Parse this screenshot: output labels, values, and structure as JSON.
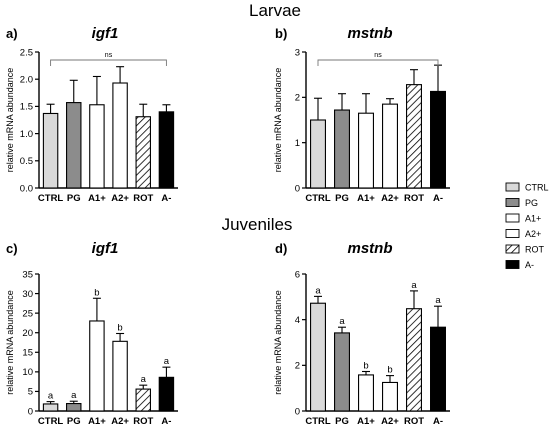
{
  "figure": {
    "sections": [
      "Larvae",
      "Juveniles"
    ],
    "legend": [
      {
        "name": "CTRL",
        "fill": "#d9d9d9",
        "hatch": false
      },
      {
        "name": "PG",
        "fill": "#8c8c8c",
        "hatch": false
      },
      {
        "name": "A1+",
        "fill": "#ffffff",
        "hatch": false
      },
      {
        "name": "A2+",
        "fill": "#ffffff",
        "hatch": false
      },
      {
        "name": "ROT",
        "fill": "#ffffff",
        "hatch": true
      },
      {
        "name": "A-",
        "fill": "#000000",
        "hatch": false
      }
    ]
  },
  "chart_data": [
    {
      "type": "bar",
      "panel": "a)",
      "title": "igf1",
      "ylabel": "relative mRNA abundance",
      "categories": [
        "CTRL",
        "PG",
        "A1+",
        "A2+",
        "ROT",
        "A-"
      ],
      "values": [
        1.37,
        1.57,
        1.53,
        1.93,
        1.31,
        1.4
      ],
      "errors": [
        0.17,
        0.41,
        0.52,
        0.3,
        0.23,
        0.13
      ],
      "ylim": [
        0,
        2.5
      ],
      "yticks": [
        0,
        0.5,
        1.0,
        1.5,
        2.0,
        2.5
      ],
      "yticklabels": [
        "0.0",
        "0.5",
        "1.0",
        "1.5",
        "2.0",
        "2.5"
      ],
      "bracket_label": "ns",
      "letters": [],
      "colors": [
        "#d9d9d9",
        "#8c8c8c",
        "#ffffff",
        "#ffffff",
        "hatch",
        "#000000"
      ]
    },
    {
      "type": "bar",
      "panel": "b)",
      "title": "mstnb",
      "ylabel": "relative mRNA abundance",
      "categories": [
        "CTRL",
        "PG",
        "A1+",
        "A2+",
        "ROT",
        "A-"
      ],
      "values": [
        1.5,
        1.72,
        1.65,
        1.85,
        2.28,
        2.13
      ],
      "errors": [
        0.48,
        0.36,
        0.43,
        0.12,
        0.33,
        0.58
      ],
      "ylim": [
        0,
        3
      ],
      "yticks": [
        0,
        1,
        2,
        3
      ],
      "yticklabels": [
        "0",
        "1",
        "2",
        "3"
      ],
      "bracket_label": "ns",
      "letters": [],
      "colors": [
        "#d9d9d9",
        "#8c8c8c",
        "#ffffff",
        "#ffffff",
        "hatch",
        "#000000"
      ]
    },
    {
      "type": "bar",
      "panel": "c)",
      "title": "igf1",
      "ylabel": "relative mRNA abundance",
      "categories": [
        "CTRL",
        "PG",
        "A1+",
        "A2+",
        "ROT",
        "A-"
      ],
      "values": [
        1.8,
        1.9,
        23.0,
        17.8,
        5.6,
        8.6
      ],
      "errors": [
        0.6,
        0.6,
        5.8,
        2.0,
        1.0,
        2.6
      ],
      "ylim": [
        0,
        35
      ],
      "yticks": [
        0,
        5,
        10,
        15,
        20,
        25,
        30,
        35
      ],
      "yticklabels": [
        "0",
        "5",
        "10",
        "15",
        "20",
        "25",
        "30",
        "35"
      ],
      "bracket_label": "",
      "letters": [
        "a",
        "a",
        "b",
        "b",
        "a",
        "a"
      ],
      "colors": [
        "#d9d9d9",
        "#8c8c8c",
        "#ffffff",
        "#ffffff",
        "hatch",
        "#000000"
      ]
    },
    {
      "type": "bar",
      "panel": "d)",
      "title": "mstnb",
      "ylabel": "relative mRNA abundance",
      "categories": [
        "CTRL",
        "PG",
        "A1+",
        "A2+",
        "ROT",
        "A-"
      ],
      "values": [
        4.72,
        3.42,
        1.58,
        1.25,
        4.48,
        3.67
      ],
      "errors": [
        0.3,
        0.25,
        0.15,
        0.3,
        0.78,
        0.92
      ],
      "ylim": [
        0,
        6
      ],
      "yticks": [
        0,
        2,
        4,
        6
      ],
      "yticklabels": [
        "0",
        "2",
        "4",
        "6"
      ],
      "bracket_label": "",
      "letters": [
        "a",
        "a",
        "b",
        "b",
        "a",
        "a"
      ],
      "colors": [
        "#d9d9d9",
        "#8c8c8c",
        "#ffffff",
        "#ffffff",
        "hatch",
        "#000000"
      ]
    }
  ]
}
